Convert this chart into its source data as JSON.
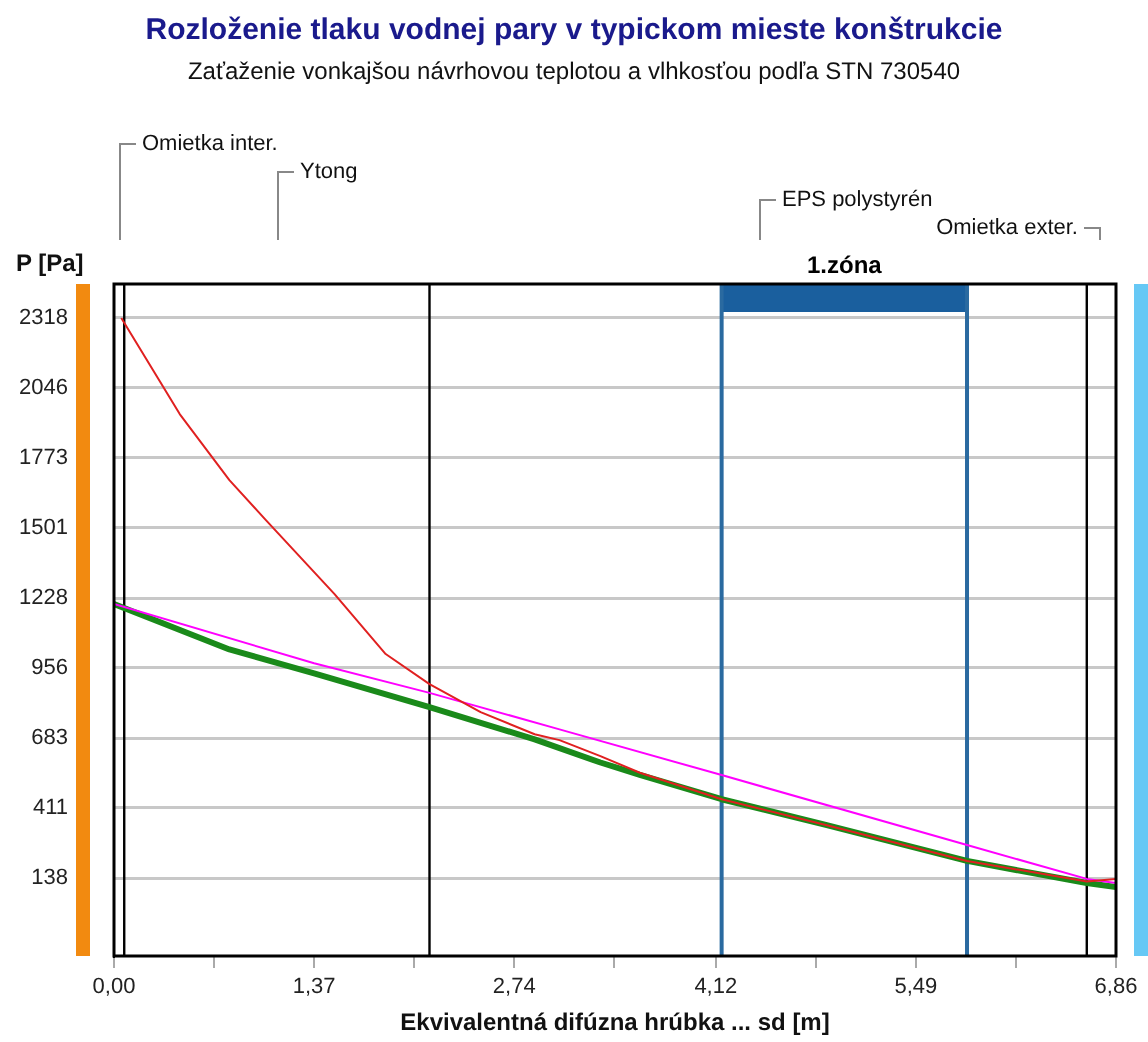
{
  "chart_data": {
    "type": "line",
    "title": "Rozloženie tlaku vodnej pary v typickom mieste konštrukcie",
    "subtitle": "Zaťaženie vonkajšou návrhovou teplotou a vlhkosťou podľa STN 730540",
    "xlabel": "Ekvivalentná difúzna hrúbka ... sd [m]",
    "ylabel": "P [Pa]",
    "xlim": [
      0,
      6.86
    ],
    "xticks": [
      {
        "value": 0,
        "label": "0,00"
      },
      {
        "value": 0.685,
        "label": null
      },
      {
        "value": 1.37,
        "label": "1,37"
      },
      {
        "value": 2.055,
        "label": null
      },
      {
        "value": 2.74,
        "label": "2,74"
      },
      {
        "value": 3.425,
        "label": null
      },
      {
        "value": 4.12,
        "label": "4,12"
      },
      {
        "value": 4.805,
        "label": null
      },
      {
        "value": 5.49,
        "label": "5,49"
      },
      {
        "value": 6.175,
        "label": null
      },
      {
        "value": 6.86,
        "label": "6,86"
      }
    ],
    "ylim": [
      -165,
      2450
    ],
    "yticks": [
      138,
      411,
      683,
      956,
      1228,
      1501,
      1773,
      2046,
      2318
    ],
    "grid": "y",
    "legend": false,
    "marker": "none",
    "series": [
      {
        "color": "#e02020",
        "x": [
          0.05,
          0.45,
          0.79,
          1.04,
          1.51,
          1.86,
          2.16,
          2.51,
          2.88,
          3.05,
          3.33,
          3.6,
          4.16,
          4.88,
          5.84,
          6.66,
          6.86
        ],
        "values": [
          2318,
          1944,
          1687,
          1531,
          1243,
          1010,
          893,
          784,
          698,
          675,
          613,
          548,
          445,
          344,
          205,
          125,
          135
        ]
      },
      {
        "color": "#ff00ff",
        "x": [
          0,
          1.37,
          2.16,
          3.05,
          4.16,
          5.84,
          6.66,
          6.86
        ],
        "values": [
          1205,
          974,
          859,
          717,
          539,
          267,
          135,
          119
        ]
      },
      {
        "color": "#1a8a1a",
        "x": [
          0,
          0.79,
          1.37,
          2.16,
          2.88,
          3.33,
          3.6,
          4.16,
          4.88,
          5.84,
          6.66,
          6.86
        ],
        "values": [
          1205,
          1028,
          935,
          803,
          678,
          588,
          540,
          445,
          344,
          205,
          119,
          103
        ]
      }
    ],
    "ref_lines": [
      {
        "axis": "x",
        "value": 0.07,
        "color": "#000000"
      },
      {
        "axis": "x",
        "value": 2.16,
        "color": "#000000"
      },
      {
        "axis": "x",
        "value": 4.16,
        "color": "#2a6aa0"
      },
      {
        "axis": "x",
        "value": 5.84,
        "color": "#2a6aa0"
      },
      {
        "axis": "x",
        "value": 6.66,
        "color": "#000000"
      }
    ],
    "bands": [
      {
        "axis": "x",
        "from": 4.16,
        "to": 5.84,
        "label": "1.zóna",
        "color": "#1a5f9e"
      }
    ],
    "annotations": [
      "Omietka inter.",
      "Ytong",
      "EPS polystyrén",
      "Omietka exter."
    ]
  }
}
